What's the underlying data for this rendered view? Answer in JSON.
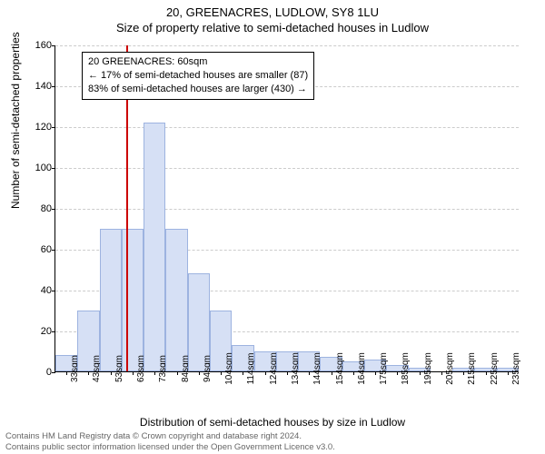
{
  "title_main": "20, GREENACRES, LUDLOW, SY8 1LU",
  "title_sub": "Size of property relative to semi-detached houses in Ludlow",
  "ylabel": "Number of semi-detached properties",
  "xlabel": "Distribution of semi-detached houses by size in Ludlow",
  "footer_line1": "Contains HM Land Registry data © Crown copyright and database right 2024.",
  "footer_line2": "Contains public sector information licensed under the Open Government Licence v3.0.",
  "info_box": {
    "line1": "20 GREENACRES: 60sqm",
    "line2": "← 17% of semi-detached houses are smaller (87)",
    "line3": "83% of semi-detached houses are larger (430) →"
  },
  "chart": {
    "type": "histogram",
    "ylim": [
      0,
      160
    ],
    "ytick_step": 20,
    "yticks": [
      0,
      20,
      40,
      60,
      80,
      100,
      120,
      140,
      160
    ],
    "x_categories": [
      "33sqm",
      "43sqm",
      "53sqm",
      "63sqm",
      "73sqm",
      "84sqm",
      "94sqm",
      "104sqm",
      "114sqm",
      "124sqm",
      "134sqm",
      "144sqm",
      "154sqm",
      "164sqm",
      "175sqm",
      "185sqm",
      "195sqm",
      "205sqm",
      "215sqm",
      "225sqm",
      "235sqm"
    ],
    "values": [
      8,
      30,
      70,
      70,
      122,
      70,
      48,
      30,
      13,
      10,
      10,
      10,
      7,
      5,
      6,
      3,
      2,
      0,
      2,
      2,
      2
    ],
    "reference_index": 2.7,
    "bar_fill": "#d6e0f5",
    "bar_border": "#9db3e0",
    "ref_line_color": "#cc0000",
    "grid_color": "#cccccc",
    "background_color": "#ffffff",
    "title_fontsize": 13,
    "label_fontsize": 12,
    "tick_fontsize": 11
  }
}
